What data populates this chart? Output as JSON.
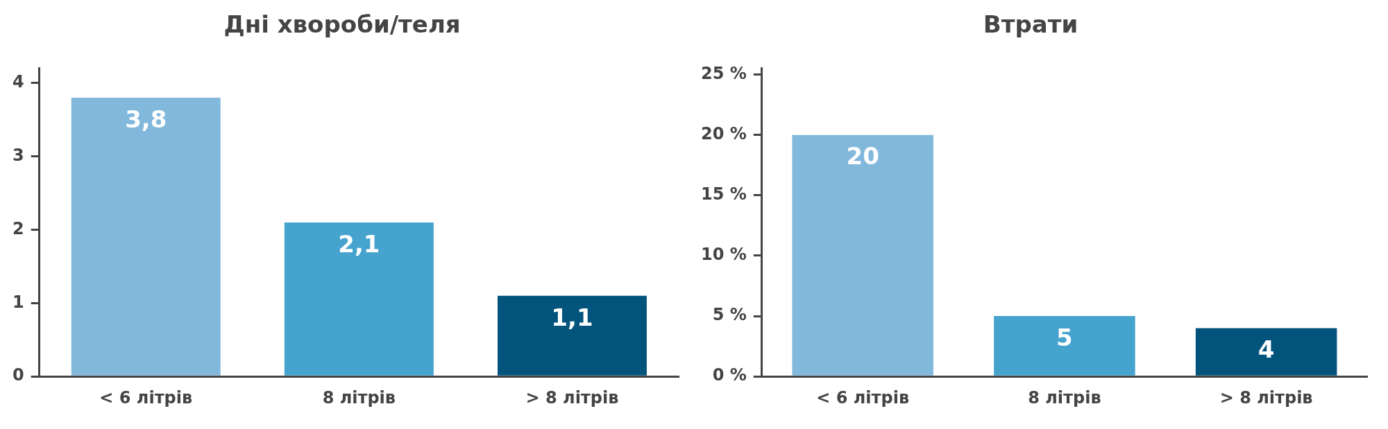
{
  "chart_data": [
    {
      "type": "bar",
      "title": "Дні хвороби/теля",
      "categories": [
        "< 6 літрів",
        "8 літрів",
        "> 8 літрів"
      ],
      "values": [
        3.8,
        2.1,
        1.1
      ],
      "value_labels": [
        "3,8",
        "2,1",
        "1,1"
      ],
      "colors": [
        "#82b8dc",
        "#45a3ce",
        "#03547c"
      ],
      "ylim": [
        0,
        4.2
      ],
      "yticks": [
        0,
        1,
        2,
        3,
        4
      ],
      "grid": false,
      "legend": false
    },
    {
      "type": "bar",
      "title": "Втрати",
      "categories": [
        "< 6 літрів",
        "8 літрів",
        "> 8 літрів"
      ],
      "values": [
        20,
        5,
        4
      ],
      "data_labels": true,
      "colors": [
        "#82b8dc",
        "#45a3ce",
        "#03547c"
      ],
      "ylim": [
        0,
        25.5
      ],
      "yticks": [
        {
          "value": 0,
          "label": "0 %"
        },
        {
          "value": 5,
          "label": "5 %"
        },
        {
          "value": 10,
          "label": "10 %"
        },
        {
          "value": 15,
          "label": "15 %"
        },
        {
          "value": 20,
          "label": "20 %"
        },
        {
          "value": 25,
          "label": "25 %"
        }
      ],
      "grid": false,
      "legend": false
    }
  ]
}
